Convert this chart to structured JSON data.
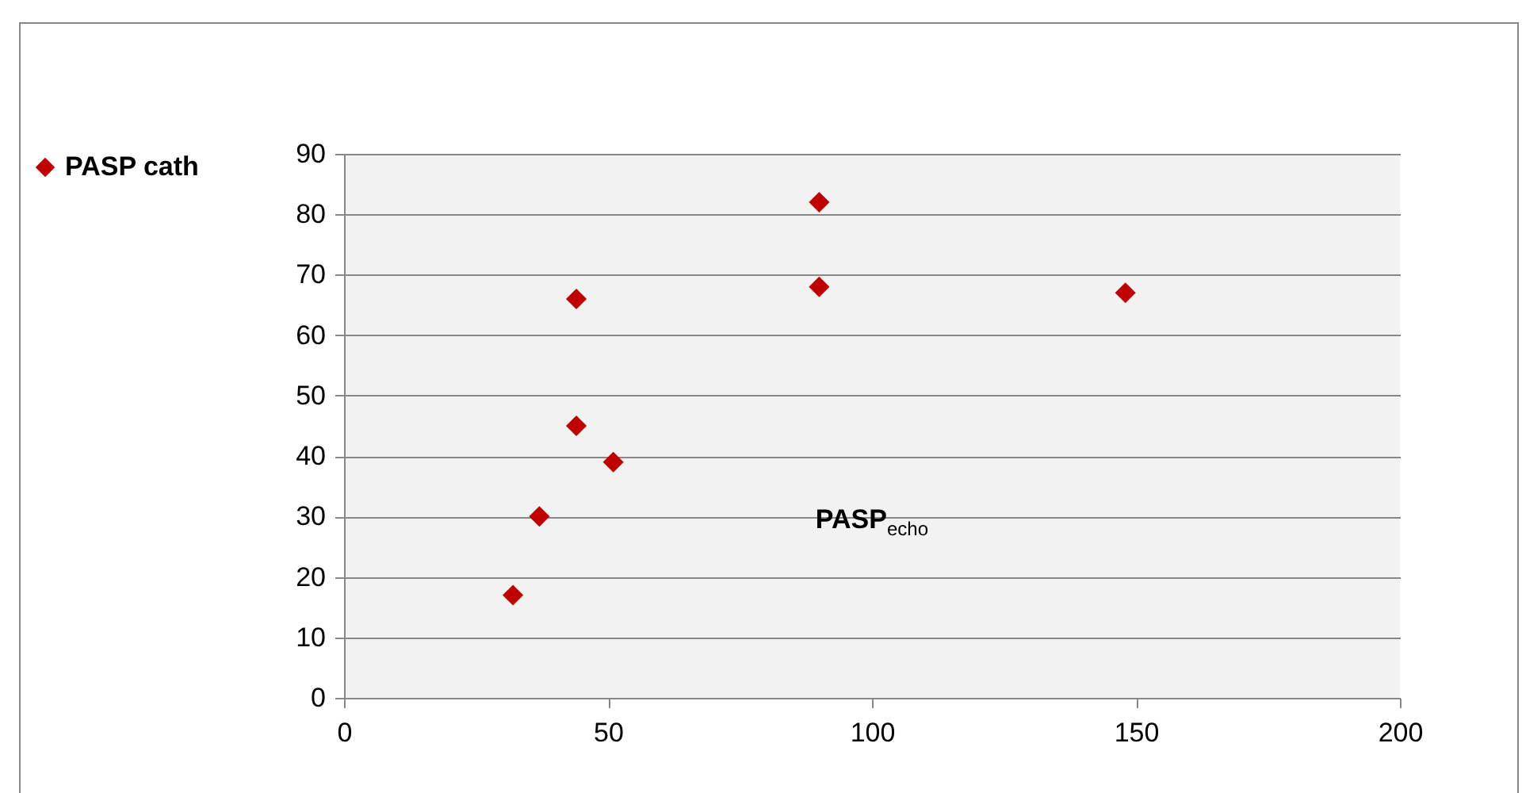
{
  "chart_data": {
    "type": "scatter",
    "xlabel": "PASP$_{echo}$",
    "series": [
      {
        "name": "PASP cath",
        "color": "#c00000",
        "x": [
          32,
          37,
          44,
          51,
          44,
          90,
          90,
          148
        ],
        "values": [
          17,
          30,
          45,
          39,
          66,
          82,
          68,
          67
        ]
      }
    ],
    "xlim": [
      0,
      200
    ],
    "xticks": [
      0,
      50,
      100,
      150,
      200
    ],
    "ylim": [
      0,
      90
    ],
    "yticks": [
      0,
      10,
      20,
      30,
      40,
      50,
      60,
      70,
      80,
      90
    ],
    "grid": "y",
    "legend": "left",
    "marker": "diamond"
  }
}
